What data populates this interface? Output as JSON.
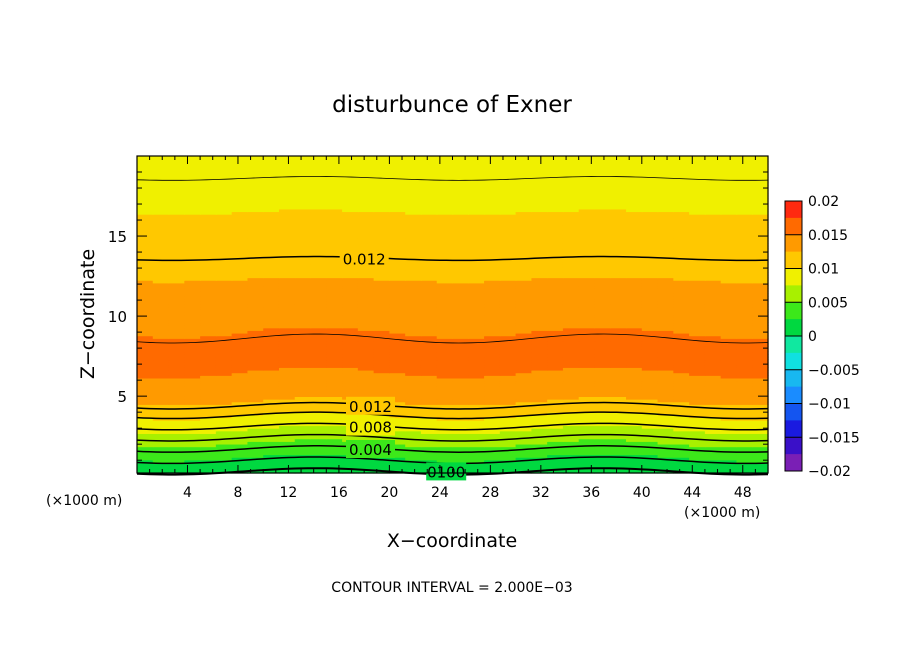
{
  "chart_data": {
    "type": "heatmap",
    "title": "disturbunce of Exner",
    "xlabel": "X−coordinate",
    "ylabel": "Z−coordinate",
    "x_unit_left": "(×1000 m)",
    "x_unit_right": "(×1000 m)",
    "footer": "CONTOUR INTERVAL = 2.000E−03",
    "xlim": [
      0,
      50
    ],
    "ylim": [
      0.2,
      20
    ],
    "x_ticks": [
      4,
      8,
      12,
      16,
      20,
      24,
      28,
      32,
      36,
      40,
      44,
      48
    ],
    "x_tick_labels": [
      "4",
      "8",
      "12",
      "16",
      "20",
      "24",
      "28",
      "32",
      "36",
      "40",
      "44",
      "48"
    ],
    "y_ticks": [
      5,
      10,
      15
    ],
    "y_tick_labels": [
      "5",
      "10",
      "15"
    ],
    "colorbar": {
      "levels": [
        0.02,
        0.015,
        0.01,
        0.005,
        0,
        -0.005,
        -0.01,
        -0.015,
        -0.02
      ],
      "labels": [
        "0.02",
        "0.015",
        "0.01",
        "0.005",
        "0",
        "−0.005",
        "−0.01",
        "−0.015",
        "−0.02"
      ]
    },
    "contour_labels": [
      {
        "text": "0.012",
        "x": 18,
        "z": 13.6
      },
      {
        "text": "0.012",
        "x": 18.5,
        "z": 4.4
      },
      {
        "text": "0.008",
        "x": 18.5,
        "z": 3.1
      },
      {
        "text": "0.004",
        "x": 18.5,
        "z": 1.7
      },
      {
        "text": "0100",
        "x": 24.5,
        "z": 0.3
      }
    ],
    "vertical_profile": [
      {
        "z": 0.3,
        "value": 0.0
      },
      {
        "z": 1.0,
        "value": 0.002
      },
      {
        "z": 1.7,
        "value": 0.004
      },
      {
        "z": 2.4,
        "value": 0.006
      },
      {
        "z": 3.1,
        "value": 0.008
      },
      {
        "z": 3.8,
        "value": 0.01
      },
      {
        "z": 4.4,
        "value": 0.012
      },
      {
        "z": 5.5,
        "value": 0.014
      },
      {
        "z": 7.0,
        "value": 0.0155
      },
      {
        "z": 9.0,
        "value": 0.015
      },
      {
        "z": 11.0,
        "value": 0.013
      },
      {
        "z": 13.6,
        "value": 0.012
      },
      {
        "z": 16.5,
        "value": 0.01
      },
      {
        "z": 18.6,
        "value": 0.009
      },
      {
        "z": 20.0,
        "value": 0.008
      }
    ],
    "grid": false
  }
}
